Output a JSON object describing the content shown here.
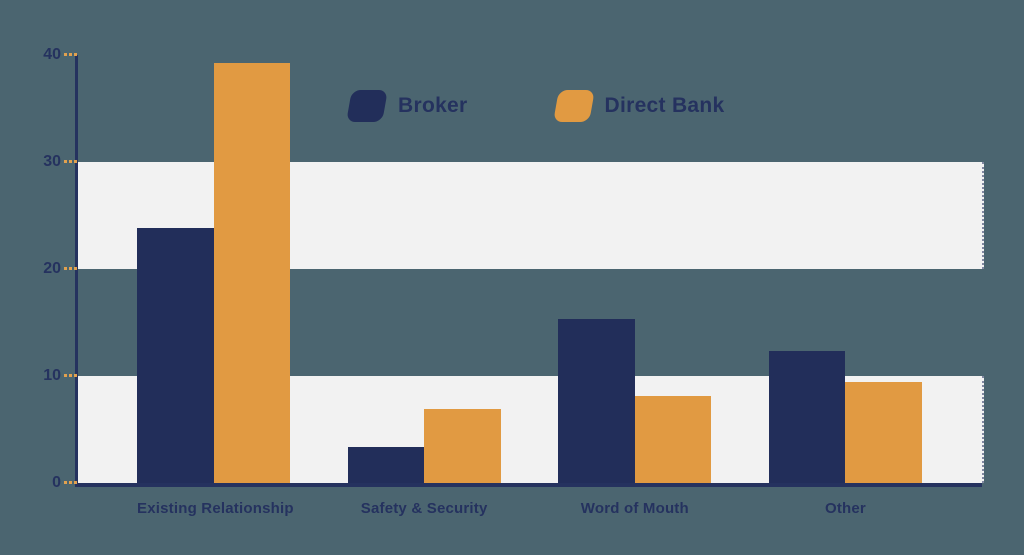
{
  "colors": {
    "background": "#4B6570",
    "navy": "#222E5A",
    "orange": "#E19A42",
    "band": "#F2F2F2",
    "axis": "#25325F",
    "text": "#25325F",
    "tick": "#E2A14F"
  },
  "legend": {
    "position": "top-center",
    "items": [
      "Broker",
      "Direct Bank"
    ]
  },
  "chart_data": {
    "type": "bar",
    "categories": [
      "Existing Relationship",
      "Safety & Security",
      "Word of Mouth",
      "Other"
    ],
    "series": [
      {
        "name": "Broker",
        "color": "#222E5A",
        "values": [
          23.8,
          3.4,
          15.3,
          12.3
        ]
      },
      {
        "name": "Direct Bank",
        "color": "#E19A42",
        "values": [
          39.3,
          6.9,
          8.1,
          9.4
        ]
      }
    ],
    "ylim": [
      0,
      40
    ],
    "yticks": [
      0,
      10,
      20,
      30,
      40
    ],
    "bands": [
      [
        0,
        10
      ],
      [
        20,
        30
      ]
    ],
    "grid": "alternating-horizontal-bands",
    "legend_position": "top-center",
    "xlabel": "",
    "ylabel": ""
  }
}
